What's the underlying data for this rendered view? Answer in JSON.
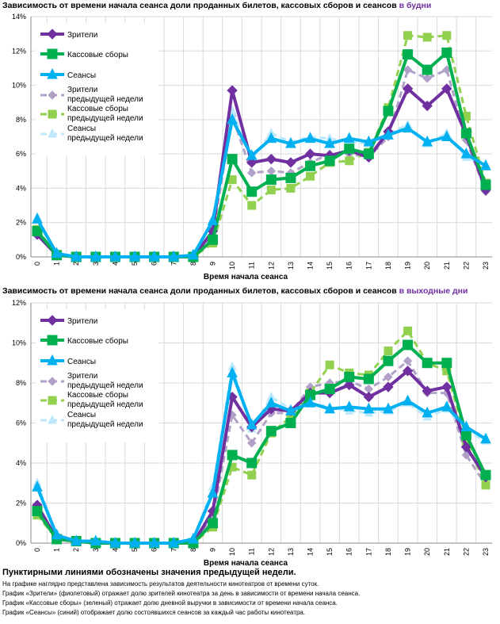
{
  "chart_data": [
    {
      "type": "line",
      "title_main": "Зависимость от времени начала сеанса доли проданных билетов, кассовых сборов и сеансов",
      "title_highlight": "в будни",
      "xlabel": "Время начала сеанса",
      "ylabel": "",
      "x": [
        0,
        1,
        2,
        3,
        4,
        5,
        6,
        7,
        8,
        9,
        10,
        11,
        12,
        13,
        14,
        15,
        16,
        17,
        18,
        19,
        20,
        21,
        22,
        23
      ],
      "ylim": [
        0,
        14
      ],
      "yticks": [
        0,
        2,
        4,
        6,
        8,
        10,
        12,
        14
      ],
      "ytick_labels": [
        "0%",
        "2%",
        "4%",
        "6%",
        "8%",
        "10%",
        "12%",
        "14%"
      ],
      "grid": true,
      "legend_position": "top-left",
      "series": [
        {
          "name": "Зрители",
          "color": "#7030a0",
          "dashed": false,
          "marker": "diamond",
          "values": [
            1.3,
            0.1,
            0,
            0,
            0,
            0,
            0,
            0,
            0,
            1.5,
            9.7,
            5.5,
            5.7,
            5.5,
            6.0,
            5.9,
            6.2,
            5.8,
            7.3,
            9.8,
            8.8,
            9.8,
            7.1,
            3.9
          ]
        },
        {
          "name": "Кассовые сборы",
          "color": "#00b050",
          "dashed": false,
          "marker": "square",
          "values": [
            1.5,
            0.1,
            0,
            0,
            0,
            0,
            0,
            0,
            0,
            1.0,
            5.7,
            3.8,
            4.5,
            4.6,
            5.3,
            5.6,
            6.3,
            6.0,
            8.5,
            11.8,
            10.9,
            11.9,
            7.2,
            4.2
          ]
        },
        {
          "name": "Сеансы",
          "color": "#00b0f0",
          "dashed": false,
          "marker": "triangle",
          "values": [
            2.2,
            0.2,
            0,
            0,
            0,
            0,
            0,
            0,
            0.1,
            2.1,
            8.0,
            5.9,
            6.9,
            6.6,
            6.9,
            6.6,
            6.9,
            6.7,
            7.1,
            7.5,
            6.7,
            7.0,
            6.0,
            5.3
          ]
        },
        {
          "name": "Зрители предыдущей недели",
          "color": "#b1a0c7",
          "dashed": true,
          "marker": "diamond",
          "values": [
            1.4,
            0.1,
            0,
            0,
            0,
            0,
            0,
            0,
            0,
            1.3,
            8.2,
            4.9,
            5.0,
            4.9,
            5.5,
            6.0,
            6.0,
            5.8,
            7.0,
            10.9,
            10.4,
            10.9,
            6.8,
            3.8
          ]
        },
        {
          "name": "Кассовые сборы предыдущей недели",
          "color": "#92d050",
          "dashed": true,
          "marker": "square",
          "values": [
            1.6,
            0.1,
            0,
            0,
            0,
            0,
            0,
            0,
            0,
            0.8,
            4.5,
            3.0,
            3.9,
            4.0,
            4.7,
            5.5,
            5.6,
            6.1,
            8.7,
            12.9,
            12.8,
            12.9,
            8.2,
            4.3
          ]
        },
        {
          "name": "Сеансы предыдущей недели",
          "color": "#bde8fb",
          "dashed": true,
          "marker": "triangle",
          "values": [
            2.3,
            0.2,
            0,
            0,
            0,
            0,
            0,
            0,
            0.1,
            2.2,
            8.5,
            5.7,
            7.2,
            6.7,
            7.0,
            6.9,
            6.7,
            6.6,
            7.2,
            7.7,
            6.6,
            7.2,
            5.8,
            5.4
          ]
        }
      ]
    },
    {
      "type": "line",
      "title_main": "Зависимость от времени начала сеанса доли проданных билетов, кассовых сборов и сеансов",
      "title_highlight": "в выходные дни",
      "xlabel": "Время начала сеанса",
      "ylabel": "",
      "x": [
        0,
        1,
        2,
        3,
        4,
        5,
        6,
        7,
        8,
        9,
        10,
        11,
        12,
        13,
        14,
        15,
        16,
        17,
        18,
        19,
        20,
        21,
        22,
        23
      ],
      "ylim": [
        0,
        12
      ],
      "yticks": [
        0,
        2,
        4,
        6,
        8,
        10,
        12
      ],
      "ytick_labels": [
        "0%",
        "2%",
        "4%",
        "6%",
        "8%",
        "10%",
        "12%"
      ],
      "grid": true,
      "legend_position": "top-left",
      "series": [
        {
          "name": "Зрители",
          "color": "#7030a0",
          "dashed": false,
          "marker": "diamond",
          "values": [
            1.9,
            0.2,
            0.1,
            0,
            0,
            0,
            0,
            0,
            0,
            1.6,
            7.3,
            5.8,
            6.7,
            6.6,
            7.5,
            7.5,
            7.9,
            7.3,
            7.8,
            8.6,
            7.6,
            7.8,
            4.8,
            3.3
          ]
        },
        {
          "name": "Кассовые сборы",
          "color": "#00b050",
          "dashed": false,
          "marker": "square",
          "values": [
            1.6,
            0.2,
            0.1,
            0,
            0,
            0,
            0,
            0,
            0,
            1.0,
            4.4,
            4.0,
            5.6,
            6.0,
            7.4,
            7.7,
            8.3,
            8.2,
            9.1,
            9.9,
            9.0,
            9.0,
            5.4,
            3.4
          ]
        },
        {
          "name": "Сеансы",
          "color": "#00b0f0",
          "dashed": false,
          "marker": "triangle",
          "values": [
            2.8,
            0.4,
            0.1,
            0.1,
            0,
            0,
            0,
            0,
            0.2,
            2.5,
            8.5,
            5.9,
            7.0,
            6.6,
            7.0,
            6.7,
            6.8,
            6.7,
            6.7,
            7.1,
            6.5,
            6.8,
            5.8,
            5.2
          ]
        },
        {
          "name": "Зрители предыдущей недели",
          "color": "#b1a0c7",
          "dashed": true,
          "marker": "diamond",
          "values": [
            1.5,
            0.2,
            0.1,
            0,
            0,
            0,
            0,
            0,
            0,
            1.3,
            6.4,
            5.0,
            6.5,
            6.5,
            7.8,
            8.0,
            8.1,
            7.7,
            8.3,
            9.1,
            7.5,
            7.5,
            4.4,
            2.9
          ]
        },
        {
          "name": "Кассовые сборы предыдущей недели",
          "color": "#92d050",
          "dashed": true,
          "marker": "square",
          "values": [
            1.4,
            0.2,
            0.1,
            0,
            0,
            0,
            0,
            0,
            0,
            0.8,
            3.8,
            3.4,
            5.5,
            6.3,
            7.5,
            8.9,
            8.5,
            8.4,
            9.6,
            10.6,
            9.0,
            8.6,
            5.1,
            2.9
          ]
        },
        {
          "name": "Сеансы предыдущей недели",
          "color": "#bde8fb",
          "dashed": true,
          "marker": "triangle",
          "values": [
            3.0,
            0.4,
            0.1,
            0.1,
            0,
            0,
            0,
            0,
            0.2,
            2.8,
            8.8,
            5.7,
            7.3,
            6.7,
            7.0,
            6.8,
            6.6,
            6.5,
            6.6,
            7.0,
            6.3,
            6.7,
            5.6,
            5.1
          ]
        }
      ]
    }
  ],
  "notes": {
    "heading": "Пунктирными линиями обозначены значения предыдущей недели.",
    "lines": [
      "На графике наглядно представлена зависимость результатов деятельности кинотеатров от времени суток.",
      "График «Зрители» (фиолетовый) отражает долю зрителей кинотеатра за день в зависимости от времени начала сеанса.",
      "График «Кассовые сборы» (зеленый) отражает долю дневной выручки в зависимости от времени начала сеанса.",
      "График «Сеансы» (синий) отображает долю состоявшихся сеансов за каждый час работы кинотеатра."
    ]
  }
}
